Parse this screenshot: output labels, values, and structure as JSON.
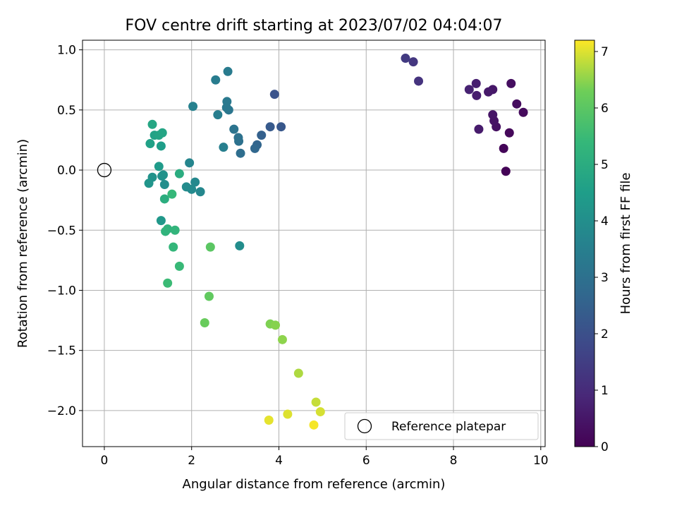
{
  "chart_data": {
    "type": "scatter",
    "title": "FOV centre drift starting at 2023/07/02 04:04:07",
    "xlabel": "Angular distance from reference (arcmin)",
    "ylabel": "Rotation from reference (arcmin)",
    "xlim": [
      -0.5,
      10.1
    ],
    "ylim": [
      -2.3,
      1.08
    ],
    "xticks": [
      0,
      2,
      4,
      6,
      8,
      10
    ],
    "yticks": [
      -2.0,
      -1.5,
      -1.0,
      -0.5,
      0.0,
      0.5,
      1.0
    ],
    "grid": true,
    "legend": {
      "position": "lower-right",
      "label": "Reference platepar"
    },
    "reference_point": {
      "x": 0,
      "y": 0
    },
    "colorbar": {
      "label": "Hours from first FF file",
      "min": 0,
      "max": 7.2,
      "ticks": [
        0,
        1,
        2,
        3,
        4,
        5,
        6,
        7
      ],
      "colormap": "viridis"
    },
    "points": [
      {
        "x": 9.2,
        "y": -0.01,
        "c": 0.05
      },
      {
        "x": 9.15,
        "y": 0.18,
        "c": 0.1
      },
      {
        "x": 9.28,
        "y": 0.31,
        "c": 0.15
      },
      {
        "x": 9.6,
        "y": 0.48,
        "c": 0.2
      },
      {
        "x": 9.45,
        "y": 0.55,
        "c": 0.25
      },
      {
        "x": 9.32,
        "y": 0.72,
        "c": 0.3
      },
      {
        "x": 8.98,
        "y": 0.36,
        "c": 0.35
      },
      {
        "x": 8.93,
        "y": 0.41,
        "c": 0.4
      },
      {
        "x": 8.9,
        "y": 0.46,
        "c": 0.45
      },
      {
        "x": 8.9,
        "y": 0.67,
        "c": 0.5
      },
      {
        "x": 8.8,
        "y": 0.65,
        "c": 0.55
      },
      {
        "x": 8.58,
        "y": 0.34,
        "c": 0.6
      },
      {
        "x": 8.53,
        "y": 0.62,
        "c": 0.65
      },
      {
        "x": 8.52,
        "y": 0.72,
        "c": 0.7
      },
      {
        "x": 8.36,
        "y": 0.67,
        "c": 0.75
      },
      {
        "x": 7.2,
        "y": 0.74,
        "c": 1.2
      },
      {
        "x": 7.08,
        "y": 0.9,
        "c": 1.3
      },
      {
        "x": 6.9,
        "y": 0.93,
        "c": 1.4
      },
      {
        "x": 3.9,
        "y": 0.63,
        "c": 2.1
      },
      {
        "x": 4.05,
        "y": 0.36,
        "c": 2.2
      },
      {
        "x": 3.8,
        "y": 0.36,
        "c": 2.3
      },
      {
        "x": 3.6,
        "y": 0.29,
        "c": 2.5
      },
      {
        "x": 3.5,
        "y": 0.21,
        "c": 2.6
      },
      {
        "x": 3.45,
        "y": 0.18,
        "c": 2.7
      },
      {
        "x": 3.12,
        "y": 0.14,
        "c": 2.9
      },
      {
        "x": 3.08,
        "y": 0.24,
        "c": 3.0
      },
      {
        "x": 3.07,
        "y": 0.27,
        "c": 3.05
      },
      {
        "x": 2.97,
        "y": 0.34,
        "c": 3.1
      },
      {
        "x": 2.85,
        "y": 0.5,
        "c": 3.2
      },
      {
        "x": 2.8,
        "y": 0.52,
        "c": 3.25
      },
      {
        "x": 2.81,
        "y": 0.57,
        "c": 3.3
      },
      {
        "x": 2.83,
        "y": 0.82,
        "c": 3.35
      },
      {
        "x": 2.55,
        "y": 0.75,
        "c": 3.4
      },
      {
        "x": 2.6,
        "y": 0.46,
        "c": 3.45
      },
      {
        "x": 2.73,
        "y": 0.19,
        "c": 3.5
      },
      {
        "x": 2.03,
        "y": 0.53,
        "c": 3.55
      },
      {
        "x": 1.95,
        "y": 0.06,
        "c": 3.7
      },
      {
        "x": 2.2,
        "y": -0.18,
        "c": 3.75
      },
      {
        "x": 2.08,
        "y": -0.1,
        "c": 3.8
      },
      {
        "x": 2.0,
        "y": -0.16,
        "c": 3.85
      },
      {
        "x": 1.88,
        "y": -0.14,
        "c": 3.9
      },
      {
        "x": 3.1,
        "y": -0.63,
        "c": 3.95
      },
      {
        "x": 1.38,
        "y": -0.12,
        "c": 4.0
      },
      {
        "x": 1.32,
        "y": -0.05,
        "c": 4.05
      },
      {
        "x": 1.35,
        "y": -0.04,
        "c": 4.1
      },
      {
        "x": 1.1,
        "y": -0.06,
        "c": 4.15
      },
      {
        "x": 1.02,
        "y": -0.11,
        "c": 4.2
      },
      {
        "x": 1.3,
        "y": -0.42,
        "c": 4.3
      },
      {
        "x": 1.25,
        "y": 0.03,
        "c": 4.4
      },
      {
        "x": 1.3,
        "y": 0.2,
        "c": 4.5
      },
      {
        "x": 1.05,
        "y": 0.22,
        "c": 4.6
      },
      {
        "x": 1.15,
        "y": 0.29,
        "c": 4.65
      },
      {
        "x": 1.25,
        "y": 0.29,
        "c": 4.7
      },
      {
        "x": 1.33,
        "y": 0.31,
        "c": 4.75
      },
      {
        "x": 1.1,
        "y": 0.38,
        "c": 4.8
      },
      {
        "x": 1.72,
        "y": -0.03,
        "c": 5.0
      },
      {
        "x": 1.38,
        "y": -0.24,
        "c": 5.05
      },
      {
        "x": 1.45,
        "y": -0.49,
        "c": 5.2
      },
      {
        "x": 1.4,
        "y": -0.51,
        "c": 5.25
      },
      {
        "x": 1.62,
        "y": -0.5,
        "c": 5.3
      },
      {
        "x": 1.58,
        "y": -0.64,
        "c": 5.35
      },
      {
        "x": 1.55,
        "y": -0.2,
        "c": 5.4
      },
      {
        "x": 1.72,
        "y": -0.8,
        "c": 5.45
      },
      {
        "x": 1.45,
        "y": -0.94,
        "c": 5.5
      },
      {
        "x": 2.43,
        "y": -0.64,
        "c": 6.0
      },
      {
        "x": 2.4,
        "y": -1.05,
        "c": 6.1
      },
      {
        "x": 2.3,
        "y": -1.27,
        "c": 6.2
      },
      {
        "x": 3.8,
        "y": -1.28,
        "c": 6.4
      },
      {
        "x": 3.92,
        "y": -1.29,
        "c": 6.45
      },
      {
        "x": 4.08,
        "y": -1.41,
        "c": 6.5
      },
      {
        "x": 4.45,
        "y": -1.69,
        "c": 6.7
      },
      {
        "x": 4.85,
        "y": -1.93,
        "c": 6.85
      },
      {
        "x": 4.95,
        "y": -2.01,
        "c": 6.95
      },
      {
        "x": 4.2,
        "y": -2.03,
        "c": 7.0
      },
      {
        "x": 3.77,
        "y": -2.08,
        "c": 7.05
      },
      {
        "x": 4.8,
        "y": -2.12,
        "c": 7.15
      }
    ]
  }
}
